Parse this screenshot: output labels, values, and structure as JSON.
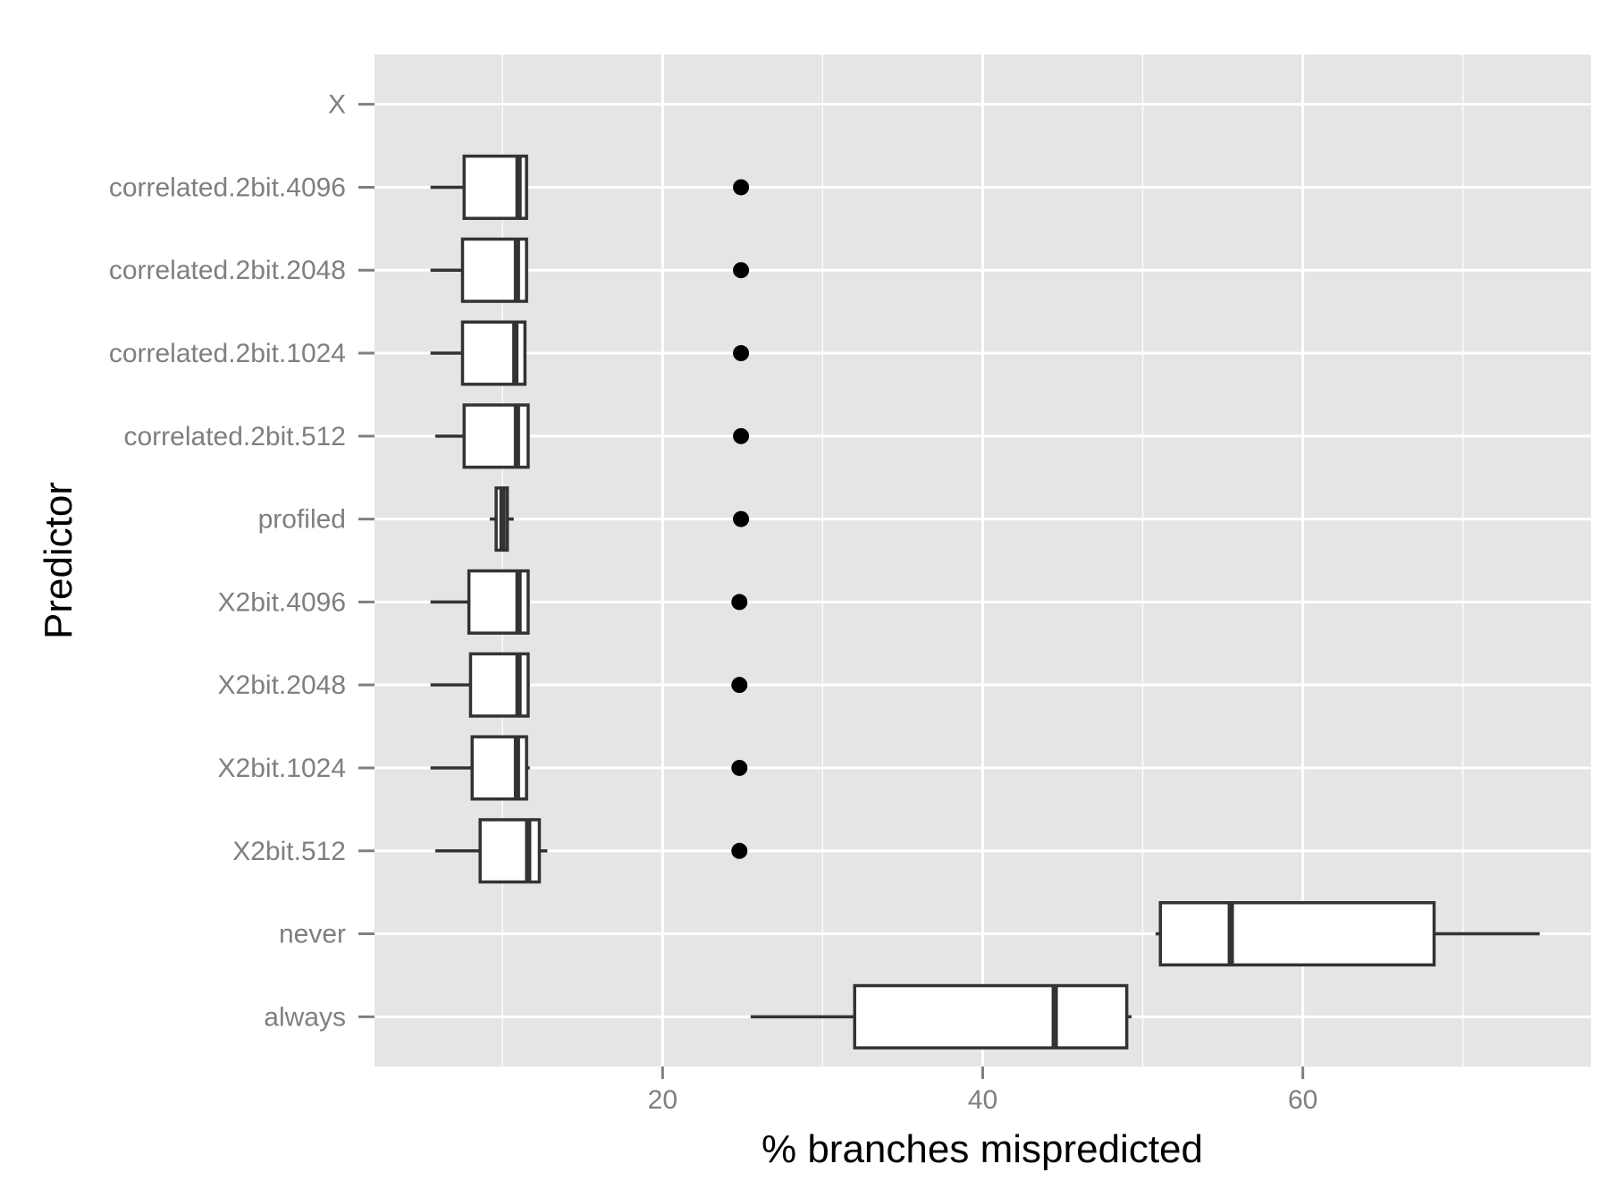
{
  "chart_data": {
    "type": "boxplot",
    "orientation": "horizontal",
    "xlabel": "% branches mispredicted",
    "ylabel": "Predictor",
    "xlim": [
      2,
      78
    ],
    "x_ticks": [
      20,
      40,
      60
    ],
    "x_minor_ticks": [
      10,
      30,
      50,
      70
    ],
    "grid": true,
    "panel_background": "#e5e5e5",
    "grid_color": "#ffffff",
    "box_fill": "#ffffff",
    "box_stroke": "#333333",
    "point_color": "#000000",
    "categories": [
      "always",
      "never",
      "X2bit.512",
      "X2bit.1024",
      "X2bit.2048",
      "X2bit.4096",
      "profiled",
      "correlated.2bit.512",
      "correlated.2bit.1024",
      "correlated.2bit.2048",
      "correlated.2bit.4096",
      "X"
    ],
    "series": [
      {
        "category": "always",
        "whisker_low": 25.5,
        "q1": 32.0,
        "median": 44.5,
        "q3": 49.0,
        "whisker_high": 49.3,
        "outliers": []
      },
      {
        "category": "never",
        "whisker_low": 50.8,
        "q1": 51.1,
        "median": 55.5,
        "q3": 68.2,
        "whisker_high": 74.8,
        "outliers": []
      },
      {
        "category": "X2bit.512",
        "whisker_low": 5.8,
        "q1": 8.6,
        "median": 11.6,
        "q3": 12.3,
        "whisker_high": 12.8,
        "outliers": [
          24.8
        ]
      },
      {
        "category": "X2bit.1024",
        "whisker_low": 5.5,
        "q1": 8.1,
        "median": 10.9,
        "q3": 11.5,
        "whisker_high": 11.7,
        "outliers": [
          24.8
        ]
      },
      {
        "category": "X2bit.2048",
        "whisker_low": 5.5,
        "q1": 8.0,
        "median": 11.0,
        "q3": 11.6,
        "whisker_high": 11.7,
        "outliers": [
          24.8
        ]
      },
      {
        "category": "X2bit.4096",
        "whisker_low": 5.5,
        "q1": 7.9,
        "median": 11.0,
        "q3": 11.6,
        "whisker_high": 11.7,
        "outliers": [
          24.8
        ]
      },
      {
        "category": "profiled",
        "whisker_low": 9.2,
        "q1": 9.6,
        "median": 10.0,
        "q3": 10.3,
        "whisker_high": 10.7,
        "outliers": [
          24.9
        ]
      },
      {
        "category": "correlated.2bit.512",
        "whisker_low": 5.8,
        "q1": 7.6,
        "median": 10.9,
        "q3": 11.6,
        "whisker_high": 11.6,
        "outliers": [
          24.9
        ]
      },
      {
        "category": "correlated.2bit.1024",
        "whisker_low": 5.5,
        "q1": 7.5,
        "median": 10.8,
        "q3": 11.4,
        "whisker_high": 11.4,
        "outliers": [
          24.9
        ]
      },
      {
        "category": "correlated.2bit.2048",
        "whisker_low": 5.5,
        "q1": 7.5,
        "median": 10.9,
        "q3": 11.5,
        "whisker_high": 11.5,
        "outliers": [
          24.9
        ]
      },
      {
        "category": "correlated.2bit.4096",
        "whisker_low": 5.5,
        "q1": 7.6,
        "median": 11.0,
        "q3": 11.5,
        "whisker_high": 11.5,
        "outliers": [
          24.9
        ]
      },
      {
        "category": "X"
      }
    ]
  }
}
